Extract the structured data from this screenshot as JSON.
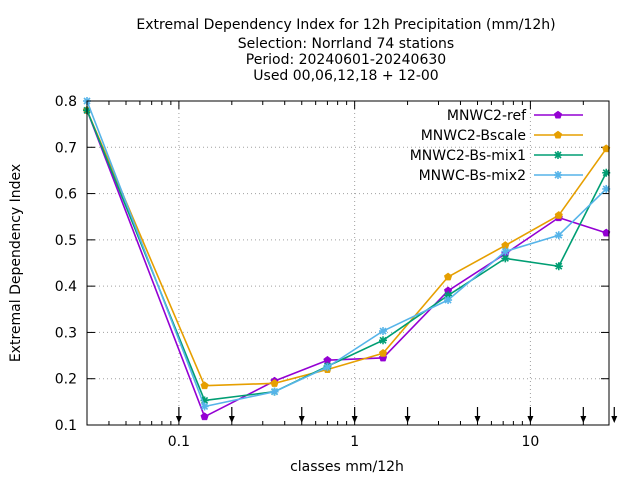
{
  "chart_data": {
    "type": "line",
    "title_lines": [
      "Extremal Dependency Index  for 12h Precipitation (mm/12h)",
      "Selection: Norrland     74 stations",
      "Period: 20240601-20240630",
      "Used 00,06,12,18 + 12-00"
    ],
    "xlabel": "classes mm/12h",
    "ylabel": "Extremal Dependency Index",
    "xscale": "log",
    "xlim": [
      0.03,
      28
    ],
    "ylim": [
      0.1,
      0.8
    ],
    "grid": true,
    "legend_position": "top-right",
    "x_ticks": [
      {
        "value": 0.1,
        "label": "0.1"
      },
      {
        "value": 1,
        "label": "1"
      },
      {
        "value": 10,
        "label": "10"
      }
    ],
    "y_ticks": [
      {
        "value": 0.1,
        "label": "0.1"
      },
      {
        "value": 0.2,
        "label": "0.2"
      },
      {
        "value": 0.3,
        "label": "0.3"
      },
      {
        "value": 0.4,
        "label": "0.4"
      },
      {
        "value": 0.5,
        "label": "0.5"
      },
      {
        "value": 0.6,
        "label": "0.6"
      },
      {
        "value": 0.7,
        "label": "0.7"
      },
      {
        "value": 0.8,
        "label": "0.8"
      }
    ],
    "threshold_arrows": [
      0.1,
      0.2,
      0.5,
      1,
      2,
      5,
      10,
      20,
      30
    ],
    "x": [
      0.03,
      0.14,
      0.35,
      0.7,
      1.45,
      3.4,
      7.2,
      14.5,
      27
    ],
    "series": [
      {
        "name": "MNWC2-ref",
        "color": "#9400d3",
        "marker": "pentagon",
        "values": [
          0.78,
          0.118,
          0.195,
          0.24,
          0.245,
          0.39,
          0.47,
          0.548,
          0.515
        ]
      },
      {
        "name": "MNWC2-Bscale",
        "color": "#e69f00",
        "marker": "pentagon",
        "values": [
          0.78,
          0.185,
          0.19,
          0.22,
          0.255,
          0.42,
          0.488,
          0.553,
          0.697
        ]
      },
      {
        "name": "MNWC2-Bs-mix1",
        "color": "#009e73",
        "marker": "star",
        "values": [
          0.78,
          0.153,
          0.172,
          0.227,
          0.283,
          0.38,
          0.46,
          0.443,
          0.645
        ]
      },
      {
        "name": "MNWC-Bs-mix2",
        "color": "#56b4e9",
        "marker": "star",
        "values": [
          0.8,
          0.14,
          0.172,
          0.225,
          0.303,
          0.37,
          0.475,
          0.51,
          0.61
        ]
      }
    ]
  }
}
